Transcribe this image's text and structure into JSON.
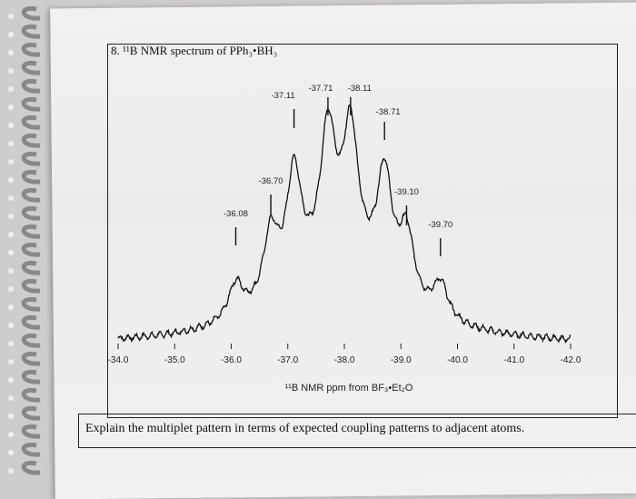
{
  "question": {
    "header": "8. ¹¹B NMR spectrum of PPh₃•BH₃",
    "prompt": "Explain the multiplet pattern in terms of expected coupling patterns to adjacent atoms."
  },
  "chart_data": {
    "type": "line",
    "title": "",
    "xlabel": "¹¹B NMR ppm from BF₃•Et₂O",
    "ylabel": "",
    "xlim": [
      -34.0,
      -42.0
    ],
    "x_reversed": true,
    "xticks": [
      -34.0,
      -35.0,
      -36.0,
      -37.0,
      -38.0,
      -39.0,
      -40.0,
      -41.0,
      -42.0
    ],
    "xtick_labels": [
      "-34.0",
      "-35.0",
      "-36.0",
      "-37.0",
      "-38.0",
      "-39.0",
      "-40.0",
      "-41.0",
      "-42.0"
    ],
    "peak_labels": [
      "-36.08",
      "-36.70",
      "-37.11",
      "-37.71",
      "-38.11",
      "-38.71",
      "-39.10",
      "-39.70"
    ],
    "peaks": [
      {
        "x": -36.08,
        "y": 0.27
      },
      {
        "x": -36.7,
        "y": 0.52
      },
      {
        "x": -37.11,
        "y": 0.86
      },
      {
        "x": -37.71,
        "y": 0.99
      },
      {
        "x": -38.11,
        "y": 1.0
      },
      {
        "x": -38.71,
        "y": 0.86
      },
      {
        "x": -39.1,
        "y": 0.52
      },
      {
        "x": -39.7,
        "y": 0.27
      }
    ],
    "grid": false,
    "colors": {
      "line": "#111111",
      "text": "#222222"
    }
  }
}
